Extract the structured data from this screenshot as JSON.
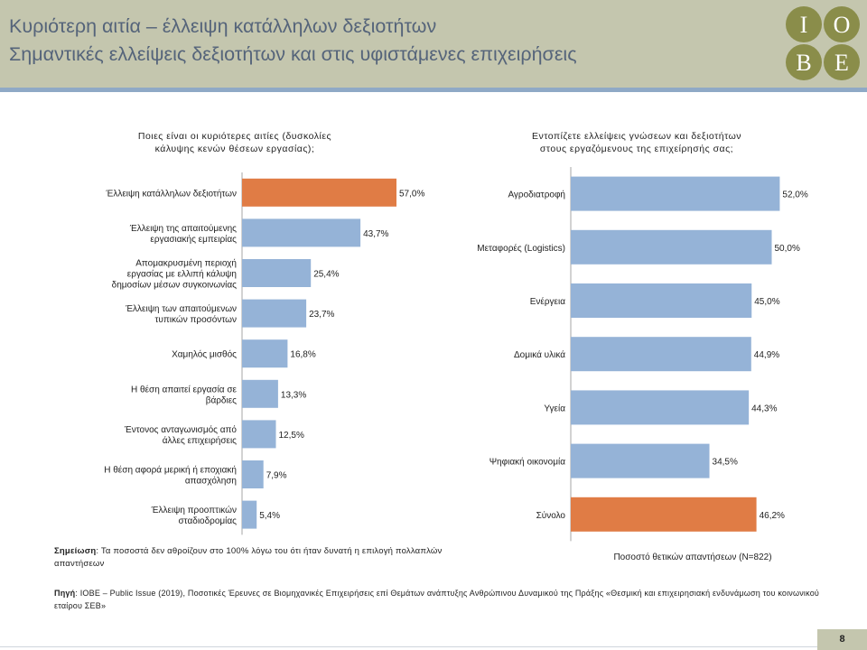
{
  "header": {
    "title_line1": "Κυριότερη αιτία – έλλειψη κατάλληλων δεξιοτήτων",
    "title_line2": "Σημαντικές ελλείψεις δεξιοτήτων και στις υφιστάμενες επιχειρήσεις",
    "logo_letters": [
      "I",
      "O",
      "B",
      "E"
    ]
  },
  "colors": {
    "bar": "#95b3d7",
    "highlight": "#e07c45",
    "header_bg": "#c4c6ae",
    "logo_bg": "#8a8d4a"
  },
  "chart_data": [
    {
      "type": "bar",
      "orientation": "horizontal",
      "title_lines": [
        "Ποιες είναι οι κυριότερες αιτίες (δυσκολίες",
        "κάλυψης κενών θέσεων εργασίας);"
      ],
      "categories": [
        [
          "Έλλειψη κατάλληλων δεξιοτήτων"
        ],
        [
          "Έλλειψη της απαιτούμενης",
          "εργασιακής εμπειρίας"
        ],
        [
          "Απομακρυσμένη περιοχή",
          "εργασίας με ελλιπή κάλυψη",
          "δημοσίων μέσων συγκοινωνίας"
        ],
        [
          "Έλλειψη των απαιτούμενων",
          "τυπικών προσόντων"
        ],
        [
          "Χαμηλός μισθός"
        ],
        [
          "Η θέση απαιτεί εργασία σε",
          "βάρδιες"
        ],
        [
          "Έντονος ανταγωνισμός από",
          "άλλες επιχειρήσεις"
        ],
        [
          "Η θέση αφορά μερική ή εποχιακή",
          "απασχόληση"
        ],
        [
          "Έλλειψη προοπτικών",
          "σταδιοδρομίας"
        ]
      ],
      "values": [
        57.0,
        43.7,
        25.4,
        23.7,
        16.8,
        13.3,
        12.5,
        7.9,
        5.4
      ],
      "labels": [
        "57,0%",
        "43,7%",
        "25,4%",
        "23,7%",
        "16,8%",
        "13,3%",
        "12,5%",
        "7,9%",
        "5,4%"
      ],
      "highlight_index": 0
    },
    {
      "type": "bar",
      "orientation": "horizontal",
      "title_lines": [
        "Εντοπίζετε ελλείψεις γνώσεων και δεξιοτήτων",
        "στους εργαζόμενους της επιχείρησής σας;"
      ],
      "categories": [
        [
          "Αγροδιατροφή"
        ],
        [
          "Μεταφορές (Logistics)"
        ],
        [
          "Ενέργεια"
        ],
        [
          "Δομικά υλικά"
        ],
        [
          "Υγεία"
        ],
        [
          "Ψηφιακή οικονομία"
        ],
        [
          "Σύνολο"
        ]
      ],
      "values": [
        52.0,
        50.0,
        45.0,
        44.9,
        44.3,
        34.5,
        46.2
      ],
      "labels": [
        "52,0%",
        "50,0%",
        "45,0%",
        "44,9%",
        "44,3%",
        "34,5%",
        "46,2%"
      ],
      "highlight_index": 6,
      "xlabel": "Ποσοστό θετικών απαντήσεων (N=822)"
    }
  ],
  "note": {
    "label": "Σημείωση",
    "text": ": Τα ποσοστά δεν αθροίζουν στο 100% λόγω του ότι ήταν δυνατή η επιλογή πολλαπλών απαντήσεων"
  },
  "source": {
    "label": "Πηγή",
    "text": ": ΙΟΒΕ – Public Issue (2019), Ποσοτικές Έρευνες σε Βιομηχανικές Επιχειρήσεις επί Θεμάτων ανάπτυξης Ανθρώπινου Δυναμικού της Πράξης «Θεσμική και επιχειρησιακή ενδυνάμωση του κοινωνικού εταίρου ΣΕΒ»"
  },
  "page_number": "8"
}
